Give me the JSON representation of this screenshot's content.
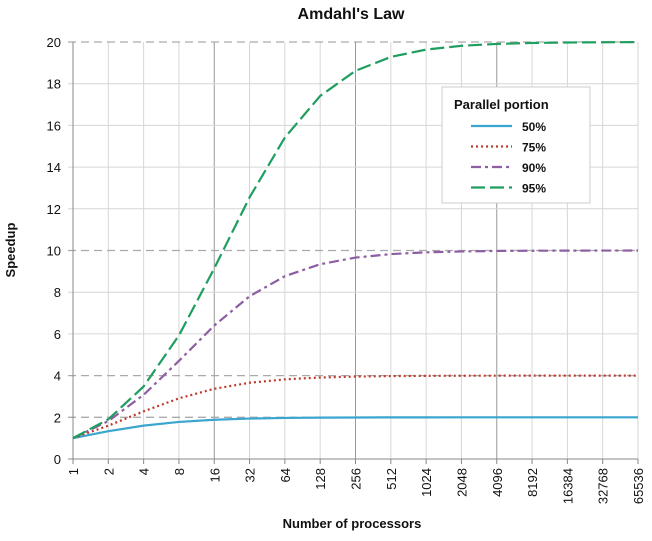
{
  "chart_data": {
    "type": "line",
    "title": "Amdahl's Law",
    "xlabel": "Number of processors",
    "ylabel": "Speedup",
    "x": [
      "1",
      "2",
      "4",
      "8",
      "16",
      "32",
      "64",
      "128",
      "256",
      "512",
      "1024",
      "2048",
      "4096",
      "8192",
      "16384",
      "32768",
      "65536"
    ],
    "ylim": [
      0,
      20
    ],
    "yticks": [
      "0",
      "2",
      "4",
      "6",
      "8",
      "10",
      "12",
      "14",
      "16",
      "18",
      "20"
    ],
    "grid": true,
    "legend_title": "Parallel portion",
    "legend_position": "top-right",
    "series": [
      {
        "name": "50%",
        "color": "#3aa6d0",
        "style": "solid",
        "values": [
          1.0,
          1.333,
          1.6,
          1.778,
          1.882,
          1.939,
          1.969,
          1.984,
          1.992,
          1.996,
          1.998,
          1.999,
          2.0,
          2.0,
          2.0,
          2.0,
          2.0
        ]
      },
      {
        "name": "75%",
        "color": "#c0392b",
        "style": "dotted",
        "values": [
          1.0,
          1.6,
          2.286,
          2.909,
          3.368,
          3.657,
          3.82,
          3.908,
          3.954,
          3.977,
          3.988,
          3.994,
          3.997,
          3.999,
          3.999,
          4.0,
          4.0
        ]
      },
      {
        "name": "90%",
        "color": "#8e5ea2",
        "style": "dashdot",
        "values": [
          1.0,
          1.818,
          3.077,
          4.706,
          6.4,
          7.805,
          8.767,
          9.343,
          9.66,
          9.827,
          9.913,
          9.956,
          9.978,
          9.989,
          9.995,
          9.997,
          9.999
        ]
      },
      {
        "name": "95%",
        "color": "#1f9e5f",
        "style": "longdash",
        "values": [
          1.0,
          1.905,
          3.478,
          5.926,
          9.143,
          12.549,
          15.421,
          17.414,
          18.618,
          19.284,
          19.636,
          19.817,
          19.908,
          19.954,
          19.977,
          19.988,
          19.994
        ]
      }
    ]
  }
}
